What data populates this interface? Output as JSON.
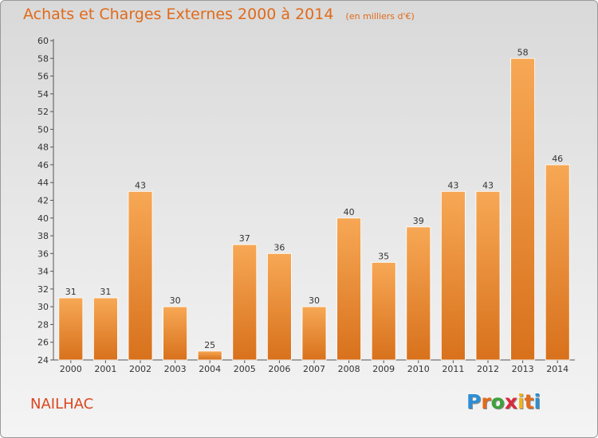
{
  "header": {
    "title": "Achats et Charges Externes 2000 à 2014",
    "subtitle": "(en milliers d'€)"
  },
  "footer": {
    "town": "NAILHAC",
    "brand": "Proxiti"
  },
  "colors": {
    "bar_light": "#f7a855",
    "bar_dark": "#d8711c",
    "title": "#e06a1a",
    "town": "#d9471f"
  },
  "chart_data": {
    "type": "bar",
    "title": "Achats et Charges Externes 2000 à 2014",
    "subtitle": "(en milliers d'€)",
    "categories": [
      "2000",
      "2001",
      "2002",
      "2003",
      "2004",
      "2005",
      "2006",
      "2007",
      "2008",
      "2009",
      "2010",
      "2011",
      "2012",
      "2013",
      "2014"
    ],
    "values": [
      31,
      31,
      43,
      30,
      25,
      37,
      36,
      30,
      40,
      35,
      39,
      43,
      43,
      58,
      46
    ],
    "xlabel": "",
    "ylabel": "",
    "ylim": [
      24,
      60
    ],
    "yticks": [
      24,
      26,
      28,
      30,
      32,
      34,
      36,
      38,
      40,
      42,
      44,
      46,
      48,
      50,
      52,
      54,
      56,
      58,
      60
    ],
    "grid": false,
    "data_labels": true
  }
}
